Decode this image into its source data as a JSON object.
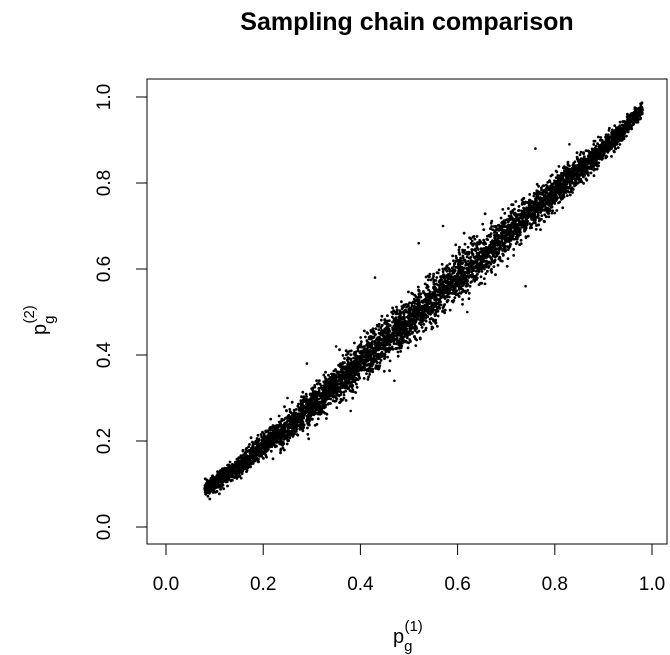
{
  "chart_data": {
    "type": "scatter",
    "title": "Sampling chain comparison",
    "xlabel": {
      "base": "p",
      "sub": "g",
      "sup": "(1)"
    },
    "ylabel": {
      "base": "p",
      "sub": "g",
      "sup": "(2)"
    },
    "xlim": [
      0.0,
      1.0
    ],
    "ylim": [
      0.0,
      1.0
    ],
    "x_ticks": [
      "0.0",
      "0.2",
      "0.4",
      "0.6",
      "0.8",
      "1.0"
    ],
    "y_ticks": [
      "0.0",
      "0.2",
      "0.4",
      "0.6",
      "0.8",
      "1.0"
    ],
    "grid": false,
    "legend": "none",
    "point_color": "#000000",
    "series": [
      {
        "x": [
          0.08,
          0.1,
          0.12,
          0.14,
          0.16,
          0.18,
          0.2,
          0.22,
          0.24,
          0.26,
          0.28,
          0.3,
          0.32,
          0.34,
          0.36,
          0.38,
          0.4,
          0.42,
          0.44,
          0.46,
          0.48,
          0.5,
          0.52,
          0.54,
          0.56,
          0.58,
          0.6,
          0.62,
          0.64,
          0.66,
          0.68,
          0.7,
          0.72,
          0.74,
          0.76,
          0.78,
          0.8,
          0.82,
          0.84,
          0.86,
          0.88,
          0.9,
          0.92,
          0.94,
          0.96,
          0.98
        ],
        "y": [
          0.09,
          0.1,
          0.12,
          0.13,
          0.15,
          0.17,
          0.19,
          0.21,
          0.22,
          0.24,
          0.26,
          0.28,
          0.3,
          0.32,
          0.34,
          0.36,
          0.38,
          0.4,
          0.42,
          0.44,
          0.46,
          0.48,
          0.5,
          0.52,
          0.54,
          0.56,
          0.58,
          0.6,
          0.62,
          0.64,
          0.66,
          0.68,
          0.7,
          0.72,
          0.74,
          0.76,
          0.78,
          0.8,
          0.82,
          0.84,
          0.86,
          0.88,
          0.9,
          0.92,
          0.95,
          0.97
        ]
      },
      {
        "x": [
          0.25,
          0.29,
          0.35,
          0.38,
          0.43,
          0.47,
          0.52,
          0.55,
          0.57,
          0.62,
          0.67,
          0.71,
          0.74,
          0.76,
          0.8,
          0.83,
          0.88
        ],
        "y": [
          0.3,
          0.38,
          0.42,
          0.27,
          0.58,
          0.34,
          0.66,
          0.48,
          0.7,
          0.5,
          0.6,
          0.73,
          0.56,
          0.88,
          0.73,
          0.89,
          0.83
        ]
      }
    ]
  }
}
